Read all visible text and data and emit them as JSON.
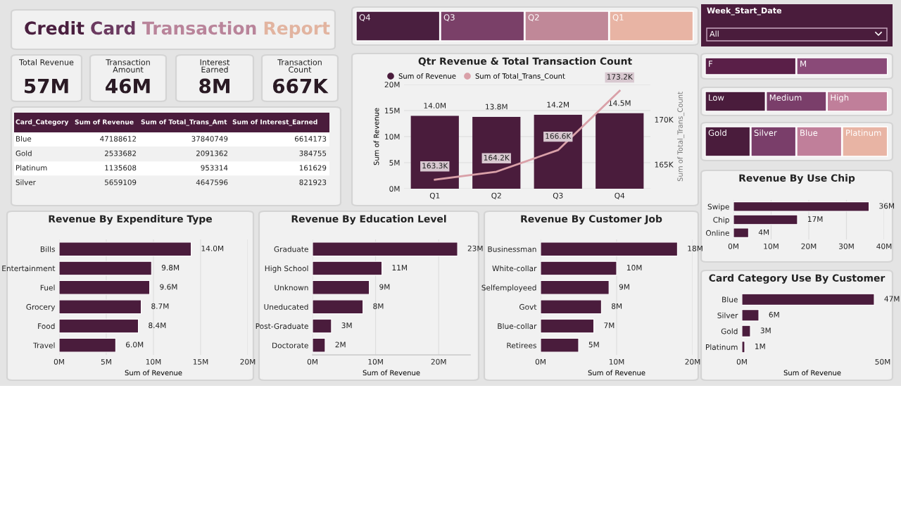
{
  "chart_data": [
    {
      "type": "other",
      "title": "Credit Card Transaction Report",
      "colors": [
        "#4a1f3f",
        "#6b3a60",
        "#b9849a",
        "#e2b4a0"
      ]
    },
    {
      "type": "other",
      "categories": [
        "Total Revenue",
        "Transaction Amount",
        "Interest Earned",
        "Transaction Count"
      ],
      "value_labels": [
        "57M",
        "46M",
        "8M",
        "667K"
      ]
    },
    {
      "type": "other",
      "categories": [
        "Card_Category",
        "Sum of Revenue",
        "Sum of Total_Trans_Amt",
        "Sum of Interest_Earned"
      ],
      "annotations": [
        "Blue",
        "47188612",
        "37840749",
        "6614173",
        "Gold",
        "2533682",
        "2091362",
        "384755",
        "Platinum",
        "1135608",
        "953314",
        "161629",
        "Silver",
        "5659109",
        "4647596",
        "821923"
      ]
    },
    {
      "type": "other",
      "categories": [
        "Q4",
        "Q3",
        "Q2",
        "Q1"
      ],
      "colors": [
        "#4a1f3f",
        "#7a4068",
        "#c08898",
        "#e8b4a4"
      ]
    },
    {
      "type": "bar",
      "title": "Qtr Revenue & Total Transaction Count",
      "categories": [
        "Q1",
        "Q2",
        "Q3",
        "Q4"
      ],
      "ylabel": "Sum of Revenue",
      "y2label": "Sum of Total_Trans_Count",
      "series": [
        {
          "name": "Sum of Revenue",
          "color": "#4a1c3c",
          "values": [
            14.0,
            13.8,
            14.2,
            14.5
          ],
          "value_labels": [
            "14.0M",
            "13.8M",
            "14.2M",
            "14.5M"
          ]
        },
        {
          "name": "Sum of Total_Trans_Count",
          "type": "line",
          "axis": "y2",
          "color": "#d9a0a8",
          "values": [
            163.3,
            164.2,
            166.6,
            173.2
          ],
          "value_labels": [
            "163.3K",
            "164.2K",
            "166.6K",
            "173.2K"
          ]
        }
      ],
      "ylim": [
        0,
        20
      ],
      "yticks": [
        {
          "value": 0,
          "label": "0M"
        },
        {
          "value": 5,
          "label": "5M"
        },
        {
          "value": 10,
          "label": "10M"
        },
        {
          "value": 15,
          "label": "15M"
        },
        {
          "value": 20,
          "label": "20M"
        }
      ],
      "y2lim": [
        162.3,
        173.9
      ],
      "y2ticks": [
        {
          "value": 165,
          "label": "165K"
        },
        {
          "value": 170,
          "label": "170K"
        }
      ],
      "legend": "top left",
      "grid": "y"
    },
    {
      "type": "other",
      "title": "Week_Start_Date",
      "categories": [
        "All"
      ],
      "colors": [
        "#4a1c3c"
      ]
    },
    {
      "type": "other",
      "categories": [
        "F",
        "M"
      ],
      "colors": [
        "#5a1f48",
        "#8a4a78"
      ]
    },
    {
      "type": "other",
      "categories": [
        "Low",
        "Medium",
        "High"
      ],
      "colors": [
        "#4a1c3c",
        "#7a3e6a",
        "#c07f9a"
      ]
    },
    {
      "type": "other",
      "categories": [
        "Gold",
        "Silver",
        "Blue",
        "Platinum"
      ],
      "colors": [
        "#4a1c3c",
        "#7a3e6a",
        "#c07f9a",
        "#e8b4a4"
      ]
    },
    {
      "type": "bar",
      "orientation": "horizontal",
      "title": "Revenue By Use Chip",
      "categories": [
        "Swipe",
        "Chip",
        "Online"
      ],
      "color": "#4a1c3c",
      "values": [
        36,
        17,
        4
      ],
      "value_labels": [
        "36M",
        "17M",
        "4M"
      ],
      "xlim": [
        0,
        40
      ],
      "xticks": [
        {
          "value": 0,
          "label": "0M"
        },
        {
          "value": 10,
          "label": "10M"
        },
        {
          "value": 20,
          "label": "20M"
        },
        {
          "value": 30,
          "label": "30M"
        },
        {
          "value": 40,
          "label": "40M"
        }
      ],
      "grid": "x"
    },
    {
      "type": "bar",
      "orientation": "horizontal",
      "title": "Card Category Use By Customer",
      "categories": [
        "Blue",
        "Silver",
        "Gold",
        "Platinum"
      ],
      "color": "#4a1c3c",
      "values": [
        47,
        6,
        3,
        1
      ],
      "value_labels": [
        "47M",
        "6M",
        "3M",
        "1M"
      ],
      "xlim": [
        0,
        50
      ],
      "xticks": [
        {
          "value": 0,
          "label": "0M"
        },
        {
          "value": 50,
          "label": "50M"
        }
      ],
      "xlabel": "Sum of Revenue"
    },
    {
      "type": "bar",
      "orientation": "horizontal",
      "title": "Revenue By Expenditure Type",
      "categories": [
        "Bills",
        "Entertainment",
        "Fuel",
        "Grocery",
        "Food",
        "Travel"
      ],
      "color": "#4a1c3c",
      "values": [
        14.0,
        9.8,
        9.6,
        8.7,
        8.4,
        6.0
      ],
      "value_labels": [
        "14.0M",
        "9.8M",
        "9.6M",
        "8.7M",
        "8.4M",
        "6.0M"
      ],
      "xlim": [
        0,
        20
      ],
      "xticks": [
        {
          "value": 0,
          "label": "0M"
        },
        {
          "value": 5,
          "label": "5M"
        },
        {
          "value": 10,
          "label": "10M"
        },
        {
          "value": 15,
          "label": "15M"
        },
        {
          "value": 20,
          "label": "20M"
        }
      ],
      "xlabel": "Sum of Revenue",
      "grid": "x"
    },
    {
      "type": "bar",
      "orientation": "horizontal",
      "title": "Revenue By Education Level",
      "categories": [
        "Graduate",
        "High School",
        "Unknown",
        "Uneducated",
        "Post-Graduate",
        "Doctorate"
      ],
      "color": "#4a1c3c",
      "values": [
        23,
        11,
        9,
        8,
        3,
        2
      ],
      "value_labels": [
        "23M",
        "11M",
        "9M",
        "8M",
        "3M",
        "2M"
      ],
      "xlim": [
        0,
        25
      ],
      "xticks": [
        {
          "value": 0,
          "label": "0M"
        },
        {
          "value": 10,
          "label": "10M"
        },
        {
          "value": 20,
          "label": "20M"
        }
      ],
      "xlabel": "Sum of Revenue",
      "grid": "x"
    },
    {
      "type": "bar",
      "orientation": "horizontal",
      "title": "Revenue By Customer Job",
      "categories": [
        "Businessman",
        "White-collar",
        "Selfemployeed",
        "Govt",
        "Blue-collar",
        "Retirees"
      ],
      "color": "#4a1c3c",
      "values": [
        18,
        10,
        9,
        8,
        7,
        5
      ],
      "value_labels": [
        "18M",
        "10M",
        "9M",
        "8M",
        "7M",
        "5M"
      ],
      "xlim": [
        0,
        20
      ],
      "xticks": [
        {
          "value": 0,
          "label": "0M"
        },
        {
          "value": 10,
          "label": "10M"
        },
        {
          "value": 20,
          "label": "20M"
        }
      ],
      "xlabel": "Sum of Revenue",
      "grid": "x"
    }
  ]
}
